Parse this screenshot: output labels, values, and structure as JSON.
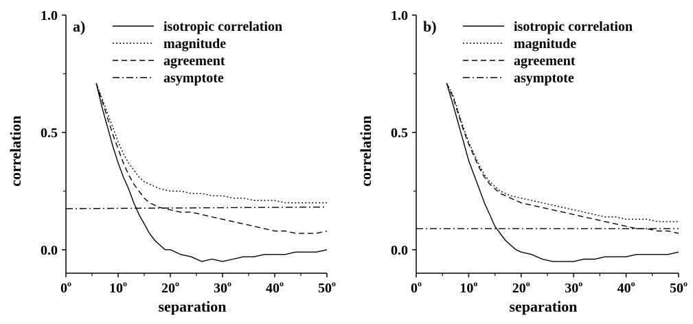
{
  "chart_data": [
    {
      "type": "line",
      "panel_label": "a)",
      "xlabel": "separation",
      "ylabel": "correlation",
      "xlim": [
        0,
        50
      ],
      "ylim": [
        -0.1,
        1.0
      ],
      "xticks": [
        0,
        10,
        20,
        30,
        40,
        50
      ],
      "xtick_labels": [
        "0",
        "10",
        "20",
        "30",
        "40",
        "50"
      ],
      "degree_mark": "o",
      "yticks": [
        0.0,
        0.5,
        1.0
      ],
      "ytick_labels": [
        "0.0",
        "0.5",
        "1.0"
      ],
      "grid": false,
      "legend": "top-right",
      "series": [
        {
          "name": "isotropic correlation",
          "style": "solid",
          "x": [
            5.8,
            7,
            8,
            9,
            10,
            11,
            12,
            13,
            14,
            15,
            16,
            17,
            18,
            19,
            20,
            22,
            24,
            26,
            28,
            30,
            32,
            34,
            36,
            38,
            40,
            42,
            44,
            46,
            48,
            50
          ],
          "y": [
            0.71,
            0.6,
            0.52,
            0.44,
            0.37,
            0.31,
            0.26,
            0.2,
            0.15,
            0.11,
            0.07,
            0.04,
            0.02,
            0.0,
            0.0,
            -0.02,
            -0.03,
            -0.05,
            -0.04,
            -0.05,
            -0.04,
            -0.03,
            -0.03,
            -0.02,
            -0.02,
            -0.02,
            -0.01,
            -0.01,
            -0.01,
            0.0
          ]
        },
        {
          "name": "magnitude",
          "style": "dotted",
          "x": [
            5.8,
            7,
            8,
            9,
            10,
            11,
            12,
            13,
            14,
            15,
            16,
            17,
            18,
            20,
            22,
            24,
            26,
            28,
            30,
            32,
            34,
            36,
            38,
            40,
            42,
            44,
            46,
            48,
            50
          ],
          "y": [
            0.71,
            0.64,
            0.58,
            0.52,
            0.46,
            0.41,
            0.37,
            0.34,
            0.31,
            0.29,
            0.28,
            0.27,
            0.26,
            0.25,
            0.25,
            0.24,
            0.24,
            0.23,
            0.23,
            0.22,
            0.22,
            0.21,
            0.21,
            0.21,
            0.2,
            0.2,
            0.2,
            0.2,
            0.2
          ]
        },
        {
          "name": "agreement",
          "style": "dashed",
          "x": [
            5.8,
            7,
            8,
            9,
            10,
            11,
            12,
            13,
            14,
            15,
            16,
            17,
            18,
            20,
            22,
            24,
            26,
            28,
            30,
            32,
            34,
            36,
            38,
            40,
            42,
            44,
            46,
            48,
            50
          ],
          "y": [
            0.71,
            0.63,
            0.56,
            0.49,
            0.43,
            0.37,
            0.32,
            0.28,
            0.25,
            0.22,
            0.2,
            0.19,
            0.18,
            0.17,
            0.16,
            0.16,
            0.15,
            0.14,
            0.13,
            0.12,
            0.11,
            0.1,
            0.09,
            0.08,
            0.08,
            0.07,
            0.07,
            0.07,
            0.08
          ]
        },
        {
          "name": "asymptote",
          "style": "dashdot",
          "x": [
            0,
            50
          ],
          "y": [
            0.175,
            0.182
          ]
        }
      ]
    },
    {
      "type": "line",
      "panel_label": "b)",
      "xlabel": "separation",
      "ylabel": "correlation",
      "xlim": [
        0,
        50
      ],
      "ylim": [
        -0.1,
        1.0
      ],
      "xticks": [
        0,
        10,
        20,
        30,
        40,
        50
      ],
      "xtick_labels": [
        "0",
        "10",
        "20",
        "30",
        "40",
        "50"
      ],
      "degree_mark": "o",
      "yticks": [
        0.0,
        0.5,
        1.0
      ],
      "ytick_labels": [
        "0.0",
        "0.5",
        "1.0"
      ],
      "grid": false,
      "legend": "top-right",
      "series": [
        {
          "name": "isotropic correlation",
          "style": "solid",
          "x": [
            5.8,
            7,
            8,
            9,
            10,
            11,
            12,
            13,
            14,
            15,
            16,
            17,
            18,
            19,
            20,
            22,
            24,
            26,
            28,
            30,
            32,
            34,
            36,
            38,
            40,
            42,
            44,
            46,
            48,
            50
          ],
          "y": [
            0.71,
            0.62,
            0.54,
            0.46,
            0.38,
            0.32,
            0.26,
            0.2,
            0.15,
            0.1,
            0.07,
            0.04,
            0.02,
            0.0,
            -0.01,
            -0.02,
            -0.04,
            -0.05,
            -0.05,
            -0.05,
            -0.04,
            -0.04,
            -0.03,
            -0.03,
            -0.03,
            -0.02,
            -0.02,
            -0.02,
            -0.02,
            -0.01
          ]
        },
        {
          "name": "magnitude",
          "style": "dotted",
          "x": [
            5.8,
            7,
            8,
            9,
            10,
            11,
            12,
            13,
            14,
            15,
            16,
            17,
            18,
            20,
            22,
            24,
            26,
            28,
            30,
            32,
            34,
            36,
            38,
            40,
            42,
            44,
            46,
            48,
            50
          ],
          "y": [
            0.71,
            0.66,
            0.59,
            0.52,
            0.46,
            0.41,
            0.36,
            0.32,
            0.29,
            0.27,
            0.25,
            0.24,
            0.23,
            0.22,
            0.21,
            0.2,
            0.19,
            0.18,
            0.17,
            0.16,
            0.15,
            0.14,
            0.14,
            0.13,
            0.13,
            0.13,
            0.12,
            0.12,
            0.12
          ]
        },
        {
          "name": "agreement",
          "style": "dashed",
          "x": [
            5.8,
            7,
            8,
            9,
            10,
            11,
            12,
            13,
            14,
            15,
            16,
            17,
            18,
            20,
            22,
            24,
            26,
            28,
            30,
            32,
            34,
            36,
            38,
            40,
            42,
            44,
            46,
            48,
            50
          ],
          "y": [
            0.71,
            0.65,
            0.58,
            0.51,
            0.45,
            0.4,
            0.35,
            0.31,
            0.28,
            0.26,
            0.24,
            0.23,
            0.22,
            0.2,
            0.19,
            0.18,
            0.17,
            0.16,
            0.15,
            0.14,
            0.13,
            0.12,
            0.11,
            0.1,
            0.09,
            0.09,
            0.08,
            0.08,
            0.07
          ]
        },
        {
          "name": "asymptote",
          "style": "dashdot",
          "x": [
            0,
            50
          ],
          "y": [
            0.09,
            0.09
          ]
        }
      ]
    }
  ]
}
